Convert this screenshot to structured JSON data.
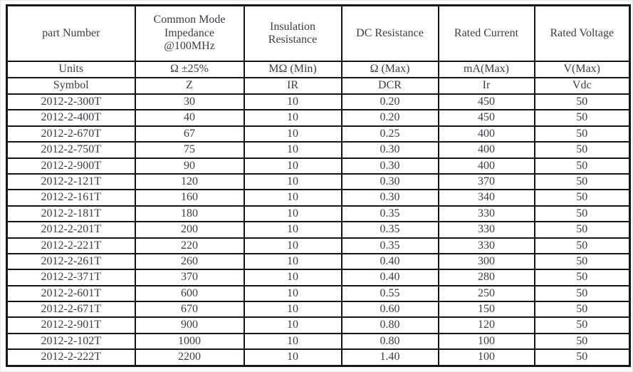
{
  "table": {
    "header": {
      "col_part": "part Number",
      "col_impedance": "Common Mode\nImpedance\n@100MHz",
      "col_insulation": "Insulation\nResistance",
      "col_dc_resistance": "DC Resistance",
      "col_rated_current": "Rated Current",
      "col_rated_voltage": "Rated Voltage"
    },
    "units_row": {
      "label": "Units",
      "impedance": "Ω ±25%",
      "insulation": "MΩ (Min)",
      "dc_resistance": "Ω (Max)",
      "rated_current": "mA(Max)",
      "rated_voltage": "V(Max)"
    },
    "symbol_row": {
      "label": "Symbol",
      "impedance": "Z",
      "insulation": "IR",
      "dc_resistance": "DCR",
      "rated_current": "Ir",
      "rated_voltage": "Vdc"
    },
    "rows": [
      {
        "part": "2012-2-300T",
        "impedance": "30",
        "insulation": "10",
        "dcr": "0.20",
        "current": "450",
        "voltage": "50"
      },
      {
        "part": "2012-2-400T",
        "impedance": "40",
        "insulation": "10",
        "dcr": "0.20",
        "current": "450",
        "voltage": "50"
      },
      {
        "part": "2012-2-670T",
        "impedance": "67",
        "insulation": "10",
        "dcr": "0.25",
        "current": "400",
        "voltage": "50"
      },
      {
        "part": "2012-2-750T",
        "impedance": "75",
        "insulation": "10",
        "dcr": "0.30",
        "current": "400",
        "voltage": "50"
      },
      {
        "part": "2012-2-900T",
        "impedance": "90",
        "insulation": "10",
        "dcr": "0.30",
        "current": "400",
        "voltage": "50"
      },
      {
        "part": "2012-2-121T",
        "impedance": "120",
        "insulation": "10",
        "dcr": "0.30",
        "current": "370",
        "voltage": "50"
      },
      {
        "part": "2012-2-161T",
        "impedance": "160",
        "insulation": "10",
        "dcr": "0.30",
        "current": "340",
        "voltage": "50"
      },
      {
        "part": "2012-2-181T",
        "impedance": "180",
        "insulation": "10",
        "dcr": "0.35",
        "current": "330",
        "voltage": "50"
      },
      {
        "part": "2012-2-201T",
        "impedance": "200",
        "insulation": "10",
        "dcr": "0.35",
        "current": "330",
        "voltage": "50"
      },
      {
        "part": "2012-2-221T",
        "impedance": "220",
        "insulation": "10",
        "dcr": "0.35",
        "current": "330",
        "voltage": "50"
      },
      {
        "part": "2012-2-261T",
        "impedance": "260",
        "insulation": "10",
        "dcr": "0.40",
        "current": "300",
        "voltage": "50"
      },
      {
        "part": "2012-2-371T",
        "impedance": "370",
        "insulation": "10",
        "dcr": "0.40",
        "current": "280",
        "voltage": "50"
      },
      {
        "part": "2012-2-601T",
        "impedance": "600",
        "insulation": "10",
        "dcr": "0.55",
        "current": "250",
        "voltage": "50"
      },
      {
        "part": "2012-2-671T",
        "impedance": "670",
        "insulation": "10",
        "dcr": "0.60",
        "current": "150",
        "voltage": "50"
      },
      {
        "part": "2012-2-901T",
        "impedance": "900",
        "insulation": "10",
        "dcr": "0.80",
        "current": "120",
        "voltage": "50"
      },
      {
        "part": "2012-2-102T",
        "impedance": "1000",
        "insulation": "10",
        "dcr": "0.80",
        "current": "100",
        "voltage": "50"
      },
      {
        "part": "2012-2-222T",
        "impedance": "2200",
        "insulation": "10",
        "dcr": "1.40",
        "current": "100",
        "voltage": "50"
      }
    ]
  },
  "colors": {
    "border": "#161616",
    "text": "#3c3c43",
    "background": "#ffffff"
  }
}
